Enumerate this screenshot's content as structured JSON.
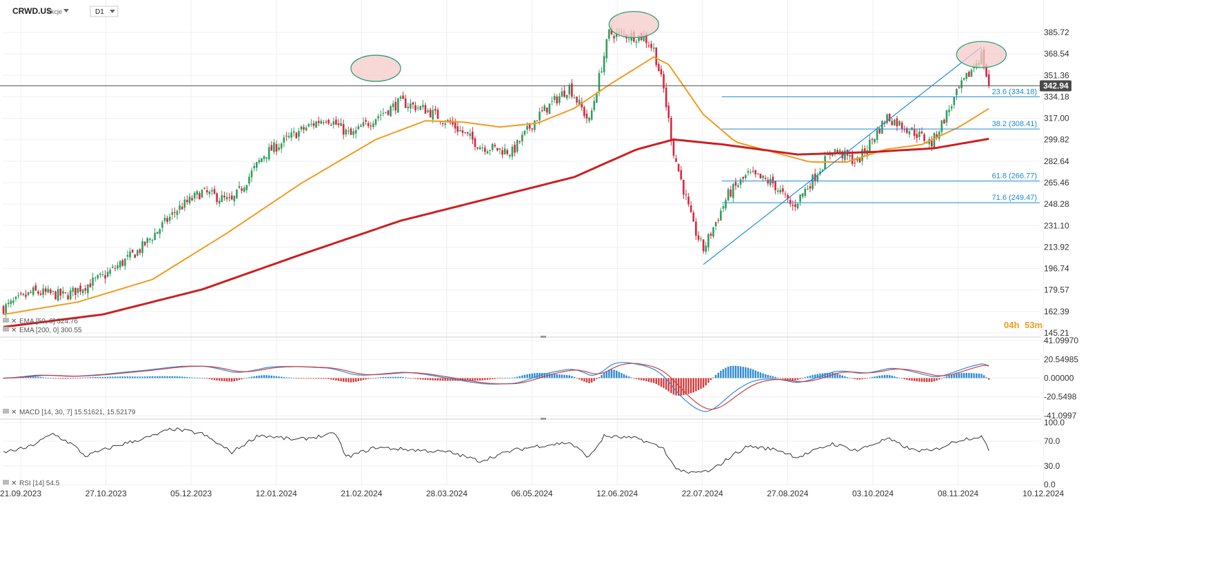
{
  "header": {
    "symbol": "CRWD.US",
    "asset_type": "Akcje",
    "timeframe": "D1"
  },
  "countdown": {
    "hours": "04h",
    "minutes": "53m"
  },
  "price_badge": "342.94",
  "indicators": {
    "ema50": "EMA [50, 0] 324.76",
    "ema200": "EMA [200, 0] 300.55",
    "macd": "MACD [14, 30, 7] 15.51621, 15.52179",
    "rsi": "RSI [14] 54.5"
  },
  "fib_labels": [
    "23.6 (334.18)",
    "38.2 (308.41)",
    "61.8 (266.77)",
    "71.6 (249.47)"
  ],
  "colors": {
    "up": "#2e9e5b",
    "down": "#d7263d",
    "ema50": "#f39a1e",
    "ema200": "#cc1f1f",
    "fib": "#1c8ad8",
    "macd_line": "#2b8ad6",
    "signal_line": "#d43b3b",
    "rsi": "#333333",
    "highlight_fill": "#f6c9c9",
    "highlight_stroke": "#2aa173"
  },
  "chart_data": {
    "type": "candlestick",
    "symbol": "CRWD.US",
    "price_ticks": [
      385.72,
      368.54,
      351.36,
      334.18,
      317.0,
      299.82,
      282.64,
      265.46,
      248.28,
      231.1,
      213.92,
      196.74,
      179.57,
      162.39,
      145.21
    ],
    "price_ticks_text": [
      "385.72",
      "368.54",
      "351.36",
      "334.18",
      "317.00",
      "299.82",
      "282.64",
      "265.46",
      "248.28",
      "231.10",
      "213.92",
      "196.74",
      "179.57",
      "162.39",
      "145.21"
    ],
    "date_ticks": [
      "21.09.2023",
      "27.10.2023",
      "05.12.2023",
      "12.01.2024",
      "21.02.2024",
      "28.03.2024",
      "06.05.2024",
      "12.06.2024",
      "22.07.2024",
      "27.08.2024",
      "03.10.2024",
      "08.11.2024",
      "10.12.2024"
    ],
    "last_price": 342.94,
    "close_path": [
      {
        "bar": 0,
        "close": 165
      },
      {
        "bar": 12,
        "close": 178
      },
      {
        "bar": 25,
        "close": 175
      },
      {
        "bar": 40,
        "close": 190
      },
      {
        "bar": 55,
        "close": 212
      },
      {
        "bar": 70,
        "close": 244
      },
      {
        "bar": 80,
        "close": 258
      },
      {
        "bar": 92,
        "close": 250
      },
      {
        "bar": 105,
        "close": 288
      },
      {
        "bar": 118,
        "close": 305
      },
      {
        "bar": 130,
        "close": 318
      },
      {
        "bar": 140,
        "close": 303
      },
      {
        "bar": 150,
        "close": 318
      },
      {
        "bar": 160,
        "close": 330
      },
      {
        "bar": 170,
        "close": 324
      },
      {
        "bar": 180,
        "close": 313
      },
      {
        "bar": 192,
        "close": 295
      },
      {
        "bar": 205,
        "close": 290
      },
      {
        "bar": 215,
        "close": 318
      },
      {
        "bar": 228,
        "close": 342
      },
      {
        "bar": 236,
        "close": 314
      },
      {
        "bar": 244,
        "close": 385
      },
      {
        "bar": 258,
        "close": 382
      },
      {
        "bar": 262,
        "close": 372
      },
      {
        "bar": 266,
        "close": 340
      },
      {
        "bar": 270,
        "close": 290
      },
      {
        "bar": 278,
        "close": 230
      },
      {
        "bar": 282,
        "close": 212
      },
      {
        "bar": 292,
        "close": 256
      },
      {
        "bar": 300,
        "close": 272
      },
      {
        "bar": 310,
        "close": 265
      },
      {
        "bar": 318,
        "close": 246
      },
      {
        "bar": 326,
        "close": 268
      },
      {
        "bar": 334,
        "close": 292
      },
      {
        "bar": 344,
        "close": 282
      },
      {
        "bar": 356,
        "close": 318
      },
      {
        "bar": 366,
        "close": 307
      },
      {
        "bar": 374,
        "close": 297
      },
      {
        "bar": 385,
        "close": 340
      },
      {
        "bar": 394,
        "close": 368
      },
      {
        "bar": 397,
        "close": 342.94
      }
    ],
    "series": [
      {
        "name": "EMA [50, 0]",
        "value": 324.76,
        "points": [
          {
            "bar": 0,
            "value": 160
          },
          {
            "bar": 30,
            "value": 170
          },
          {
            "bar": 60,
            "value": 188
          },
          {
            "bar": 90,
            "value": 225
          },
          {
            "bar": 120,
            "value": 265
          },
          {
            "bar": 150,
            "value": 300
          },
          {
            "bar": 170,
            "value": 315
          },
          {
            "bar": 185,
            "value": 314
          },
          {
            "bar": 200,
            "value": 310
          },
          {
            "bar": 215,
            "value": 313
          },
          {
            "bar": 230,
            "value": 325
          },
          {
            "bar": 245,
            "value": 345
          },
          {
            "bar": 262,
            "value": 366
          },
          {
            "bar": 268,
            "value": 360
          },
          {
            "bar": 282,
            "value": 320
          },
          {
            "bar": 295,
            "value": 298
          },
          {
            "bar": 310,
            "value": 290
          },
          {
            "bar": 325,
            "value": 282
          },
          {
            "bar": 340,
            "value": 282
          },
          {
            "bar": 355,
            "value": 292
          },
          {
            "bar": 370,
            "value": 296
          },
          {
            "bar": 385,
            "value": 310
          },
          {
            "bar": 397,
            "value": 324.76
          }
        ]
      },
      {
        "name": "EMA [200, 0]",
        "value": 300.55,
        "points": [
          {
            "bar": 0,
            "value": 150
          },
          {
            "bar": 40,
            "value": 160
          },
          {
            "bar": 80,
            "value": 180
          },
          {
            "bar": 120,
            "value": 208
          },
          {
            "bar": 160,
            "value": 235
          },
          {
            "bar": 200,
            "value": 255
          },
          {
            "bar": 230,
            "value": 270
          },
          {
            "bar": 255,
            "value": 292
          },
          {
            "bar": 270,
            "value": 300
          },
          {
            "bar": 290,
            "value": 296
          },
          {
            "bar": 320,
            "value": 288
          },
          {
            "bar": 350,
            "value": 290
          },
          {
            "bar": 375,
            "value": 293
          },
          {
            "bar": 397,
            "value": 300.55
          }
        ]
      }
    ],
    "fibonacci": [
      {
        "level": 23.6,
        "price": 334.18
      },
      {
        "level": 38.2,
        "price": 308.41
      },
      {
        "level": 61.8,
        "price": 266.77
      },
      {
        "level": 71.6,
        "price": 249.47
      }
    ],
    "trendline": {
      "from": {
        "bar": 282,
        "price": 200
      },
      "to": {
        "bar": 394,
        "price": 374
      }
    },
    "highlights": [
      {
        "bar": 150,
        "price": 357
      },
      {
        "bar": 254,
        "price": 392
      },
      {
        "bar": 394,
        "price": 368
      }
    ],
    "macd": {
      "ticks": [
        41.0997,
        20.54985,
        0.0,
        -20.5498,
        -41.0997
      ],
      "ticks_text": [
        "41.09970",
        "20.54985",
        "0.00000",
        "-20.5498",
        "-41.0997"
      ],
      "value": 15.51621,
      "signal": 15.52179
    },
    "rsi": {
      "ticks": [
        100.0,
        70.0,
        30.0,
        0.0
      ],
      "ticks_text": [
        "100.0",
        "70.0",
        "30.0",
        "0.0"
      ],
      "value": 54.5,
      "points": [
        {
          "bar": 0,
          "value": 52
        },
        {
          "bar": 10,
          "value": 60
        },
        {
          "bar": 20,
          "value": 82
        },
        {
          "bar": 28,
          "value": 64
        },
        {
          "bar": 33,
          "value": 46
        },
        {
          "bar": 45,
          "value": 62
        },
        {
          "bar": 60,
          "value": 78
        },
        {
          "bar": 68,
          "value": 90
        },
        {
          "bar": 80,
          "value": 82
        },
        {
          "bar": 92,
          "value": 52
        },
        {
          "bar": 103,
          "value": 80
        },
        {
          "bar": 118,
          "value": 72
        },
        {
          "bar": 134,
          "value": 82
        },
        {
          "bar": 138,
          "value": 44
        },
        {
          "bar": 150,
          "value": 60
        },
        {
          "bar": 165,
          "value": 56
        },
        {
          "bar": 180,
          "value": 52
        },
        {
          "bar": 192,
          "value": 38
        },
        {
          "bar": 205,
          "value": 55
        },
        {
          "bar": 215,
          "value": 62
        },
        {
          "bar": 228,
          "value": 68
        },
        {
          "bar": 236,
          "value": 44
        },
        {
          "bar": 242,
          "value": 78
        },
        {
          "bar": 256,
          "value": 74
        },
        {
          "bar": 266,
          "value": 58
        },
        {
          "bar": 270,
          "value": 30
        },
        {
          "bar": 275,
          "value": 18
        },
        {
          "bar": 285,
          "value": 22
        },
        {
          "bar": 294,
          "value": 48
        },
        {
          "bar": 300,
          "value": 62
        },
        {
          "bar": 312,
          "value": 56
        },
        {
          "bar": 320,
          "value": 44
        },
        {
          "bar": 334,
          "value": 66
        },
        {
          "bar": 344,
          "value": 55
        },
        {
          "bar": 356,
          "value": 74
        },
        {
          "bar": 366,
          "value": 56
        },
        {
          "bar": 374,
          "value": 54
        },
        {
          "bar": 385,
          "value": 72
        },
        {
          "bar": 394,
          "value": 78
        },
        {
          "bar": 397,
          "value": 54.5
        }
      ]
    }
  }
}
